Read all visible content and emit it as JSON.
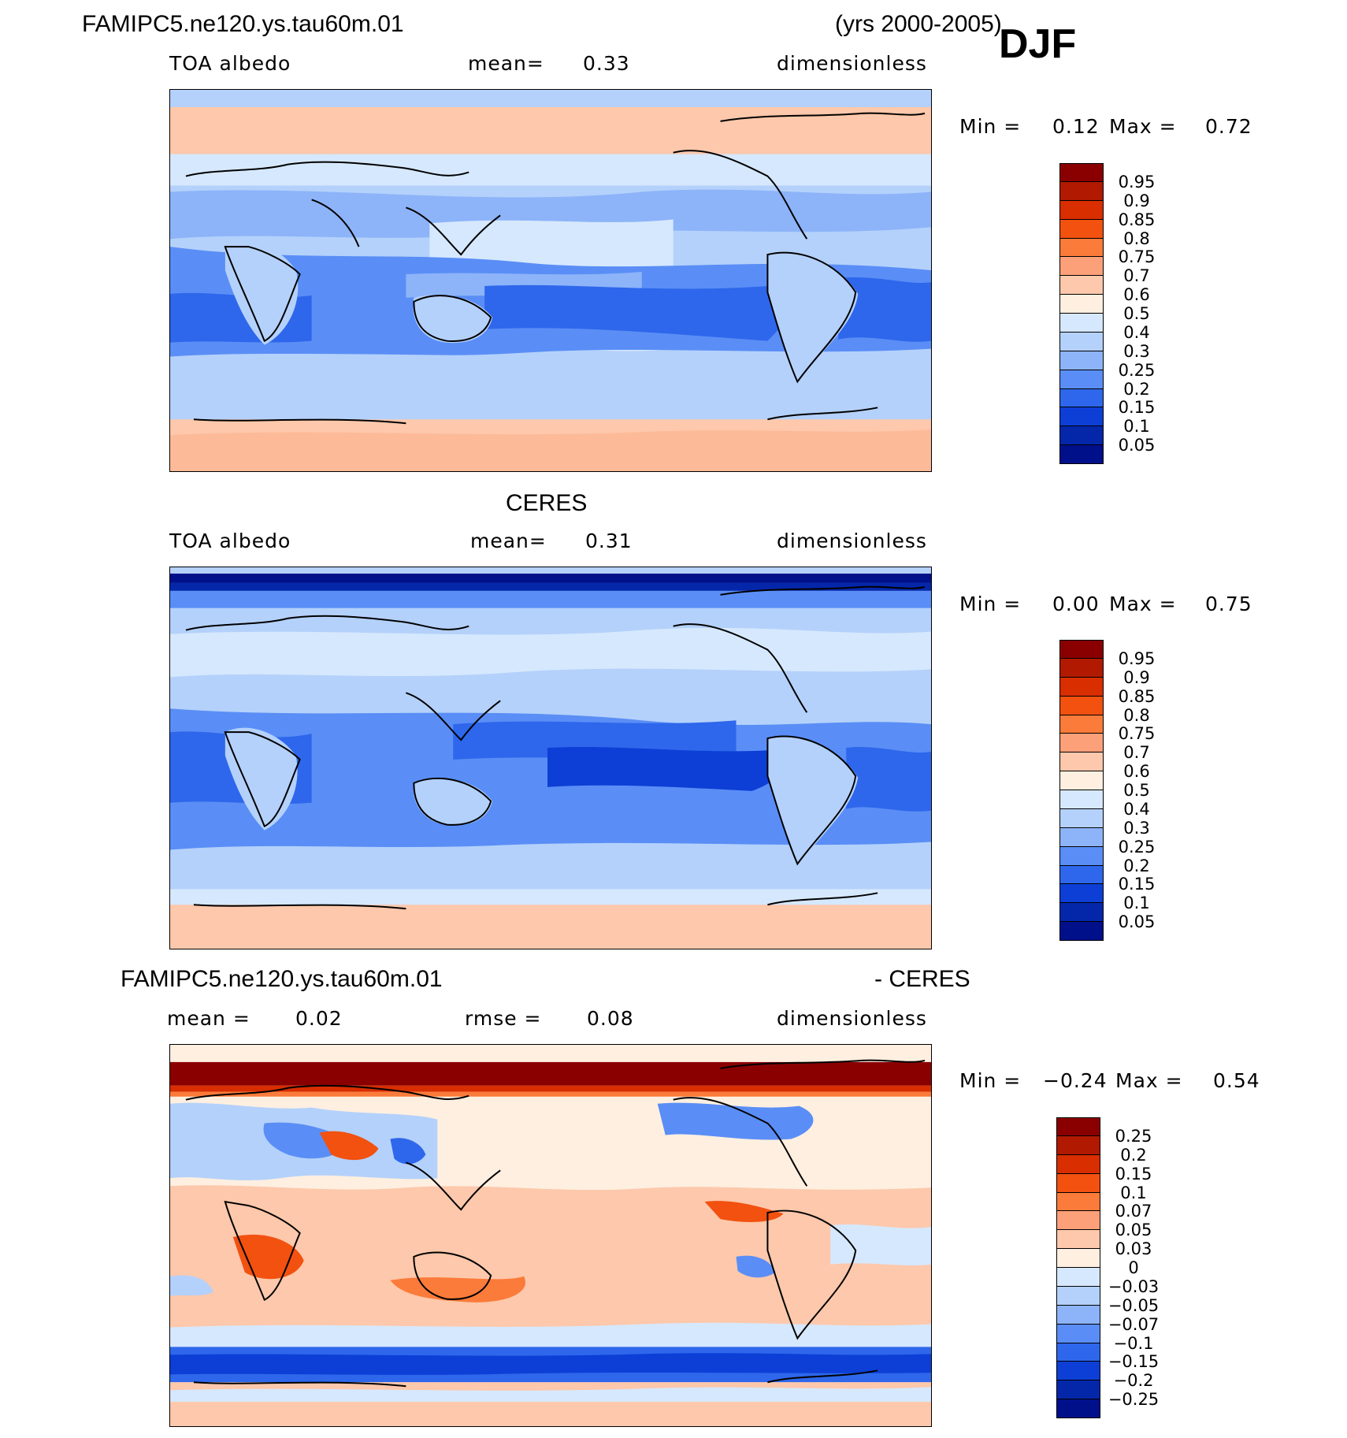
{
  "header": {
    "case_name": "FAMIPC5.ne120.ys.tau60m.01",
    "years": "(yrs 2000-2005)",
    "season": "DJF"
  },
  "panels": [
    {
      "title": "",
      "variable": "TOA albedo",
      "mean_label": "mean=",
      "mean_value": "0.33",
      "units": "dimensionless",
      "min_label": "Min =",
      "min_value": "0.12",
      "max_label": "Max =",
      "max_value": "0.72",
      "colorbar": {
        "levels": [
          "0.95",
          "0.9",
          "0.85",
          "0.8",
          "0.75",
          "0.7",
          "0.6",
          "0.5",
          "0.4",
          "0.3",
          "0.25",
          "0.2",
          "0.15",
          "0.1",
          "0.05"
        ],
        "colors": [
          "#8a0000",
          "#b11a00",
          "#d82e00",
          "#f2510f",
          "#fb7b3a",
          "#fca079",
          "#fdc8ab",
          "#feefe0",
          "#d6e8fd",
          "#b4d1fb",
          "#8db4f9",
          "#5a8ef6",
          "#2e67eb",
          "#0d3fd6",
          "#0427aa",
          "#00108a"
        ]
      }
    },
    {
      "title": "CERES",
      "variable": "TOA albedo",
      "mean_label": "mean=",
      "mean_value": "0.31",
      "units": "dimensionless",
      "min_label": "Min =",
      "min_value": "0.00",
      "max_label": "Max =",
      "max_value": "0.75",
      "colorbar": {
        "levels": [
          "0.95",
          "0.9",
          "0.85",
          "0.8",
          "0.75",
          "0.7",
          "0.6",
          "0.5",
          "0.4",
          "0.3",
          "0.25",
          "0.2",
          "0.15",
          "0.1",
          "0.05"
        ],
        "colors": [
          "#8a0000",
          "#b11a00",
          "#d82e00",
          "#f2510f",
          "#fb7b3a",
          "#fca079",
          "#fdc8ab",
          "#feefe0",
          "#d6e8fd",
          "#b4d1fb",
          "#8db4f9",
          "#5a8ef6",
          "#2e67eb",
          "#0d3fd6",
          "#0427aa",
          "#00108a"
        ]
      }
    },
    {
      "title_left": "FAMIPC5.ne120.ys.tau60m.01",
      "title_right": "- CERES",
      "mean_label": "mean =",
      "mean_value": "0.02",
      "rmse_label": "rmse =",
      "rmse_value": "0.08",
      "units": "dimensionless",
      "min_label": "Min =",
      "min_value": "−0.24",
      "max_label": "Max =",
      "max_value": "0.54",
      "colorbar": {
        "levels": [
          "0.25",
          "0.2",
          "0.15",
          "0.1",
          "0.07",
          "0.05",
          "0.03",
          "0",
          "−0.03",
          "−0.05",
          "−0.07",
          "−0.1",
          "−0.15",
          "−0.2",
          "−0.25"
        ],
        "colors": [
          "#8a0000",
          "#b11a00",
          "#d82e00",
          "#f2510f",
          "#fb7b3a",
          "#fca079",
          "#fdc8ab",
          "#feefe0",
          "#d6e8fd",
          "#b4d1fb",
          "#8db4f9",
          "#5a8ef6",
          "#2e67eb",
          "#0d3fd6",
          "#0427aa",
          "#00108a"
        ]
      }
    }
  ]
}
